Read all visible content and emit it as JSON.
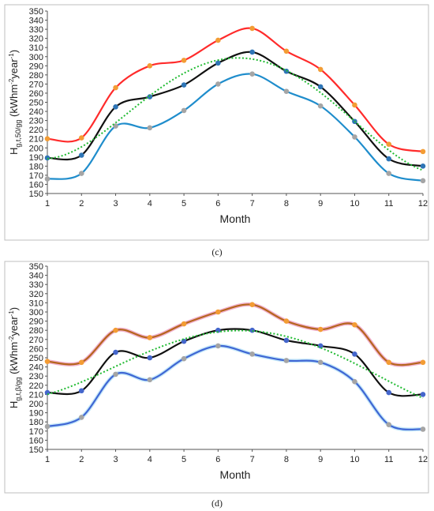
{
  "chart_data": [
    {
      "type": "line",
      "caption": "(c)",
      "xlabel": "Month",
      "ylabel_main": "H",
      "ylabel_sub": "g,t,50/gg",
      "ylabel_unit_pre": " (kWhm",
      "ylabel_unit_sup1": "-2",
      "ylabel_unit_mid": "year",
      "ylabel_unit_sup2": "-1",
      "ylabel_unit_post": ")",
      "x": [
        1,
        2,
        3,
        4,
        5,
        6,
        7,
        8,
        9,
        10,
        11,
        12
      ],
      "xticks": [
        "1",
        "2",
        "3",
        "4",
        "5",
        "6",
        "7",
        "8",
        "9",
        "10",
        "11",
        "12"
      ],
      "ylim": [
        150,
        350
      ],
      "ystep": 10,
      "yticks": [
        "150",
        "160",
        "170",
        "180",
        "190",
        "200",
        "210",
        "220",
        "230",
        "240",
        "250",
        "260",
        "270",
        "280",
        "290",
        "300",
        "310",
        "320",
        "330",
        "340",
        "350"
      ],
      "series": [
        {
          "values": [
            210,
            211,
            266,
            290,
            296,
            318,
            331,
            306,
            286,
            247,
            204,
            196
          ],
          "color": "#ff2b2b",
          "marker": "#f39c34"
        },
        {
          "values": [
            189,
            192,
            245,
            256,
            269,
            293,
            305,
            284,
            267,
            229,
            188,
            180
          ],
          "color": "#111111",
          "marker": "#2e75b6"
        },
        {
          "values": [
            166,
            172,
            224,
            222,
            241,
            270,
            281,
            262,
            246,
            212,
            172,
            164
          ],
          "color": "#1f8dcc",
          "marker": "#a5a5a5"
        }
      ],
      "trend": {
        "color": "#22bb33",
        "style": "dotted"
      }
    },
    {
      "type": "line",
      "caption": "(d)",
      "xlabel": "Month",
      "ylabel_main": "H",
      "ylabel_sub": "g,t,β/gg",
      "ylabel_unit_pre": " (kWhm",
      "ylabel_unit_sup1": "-2",
      "ylabel_unit_mid": "year",
      "ylabel_unit_sup2": "-1",
      "ylabel_unit_post": ")",
      "x": [
        1,
        2,
        3,
        4,
        5,
        6,
        7,
        8,
        9,
        10,
        11,
        12
      ],
      "xticks": [
        "1",
        "2",
        "3",
        "4",
        "5",
        "6",
        "7",
        "8",
        "9",
        "10",
        "11",
        "12"
      ],
      "ylim": [
        150,
        350
      ],
      "ystep": 10,
      "yticks": [
        "150",
        "160",
        "170",
        "180",
        "190",
        "200",
        "210",
        "220",
        "230",
        "240",
        "250",
        "260",
        "270",
        "280",
        "290",
        "300",
        "310",
        "320",
        "330",
        "340",
        "350"
      ],
      "series": [
        {
          "values": [
            246,
            245,
            280,
            272,
            287,
            300,
            308,
            290,
            281,
            286,
            245,
            245
          ],
          "color": "#b5651d",
          "marker": "#f39c34",
          "halo": "#f0a8c8"
        },
        {
          "values": [
            212,
            214,
            256,
            250,
            268,
            280,
            280,
            269,
            263,
            254,
            212,
            210
          ],
          "color": "#111111",
          "marker": "#4466cc"
        },
        {
          "values": [
            175,
            185,
            232,
            226,
            249,
            263,
            254,
            247,
            245,
            224,
            177,
            172
          ],
          "color": "#3f66d4",
          "marker": "#a5a5a5",
          "halo": "#bfe6f8"
        }
      ],
      "trend": {
        "color": "#22bb33",
        "style": "dotted"
      }
    }
  ]
}
